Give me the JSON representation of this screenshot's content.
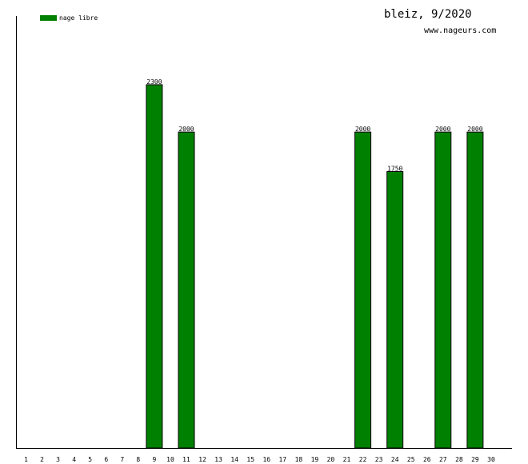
{
  "chart_data": {
    "type": "bar",
    "title": "bleiz, 9/2020",
    "subtitle": "www.nageurs.com",
    "categories": [
      "1",
      "2",
      "3",
      "4",
      "5",
      "6",
      "7",
      "8",
      "9",
      "10",
      "11",
      "12",
      "13",
      "14",
      "15",
      "16",
      "17",
      "18",
      "19",
      "20",
      "21",
      "22",
      "23",
      "24",
      "25",
      "26",
      "27",
      "28",
      "29",
      "30"
    ],
    "series": [
      {
        "name": "nage libre",
        "color": "#008000",
        "points": [
          {
            "category": "9",
            "value": 2300
          },
          {
            "category": "11",
            "value": 2000
          },
          {
            "category": "22",
            "value": 2000
          },
          {
            "category": "24",
            "value": 1750
          },
          {
            "category": "27",
            "value": 2000
          },
          {
            "category": "29",
            "value": 2000
          }
        ]
      }
    ],
    "ylim": [
      0,
      2735
    ],
    "grid": false,
    "legend_position": "top-left"
  }
}
